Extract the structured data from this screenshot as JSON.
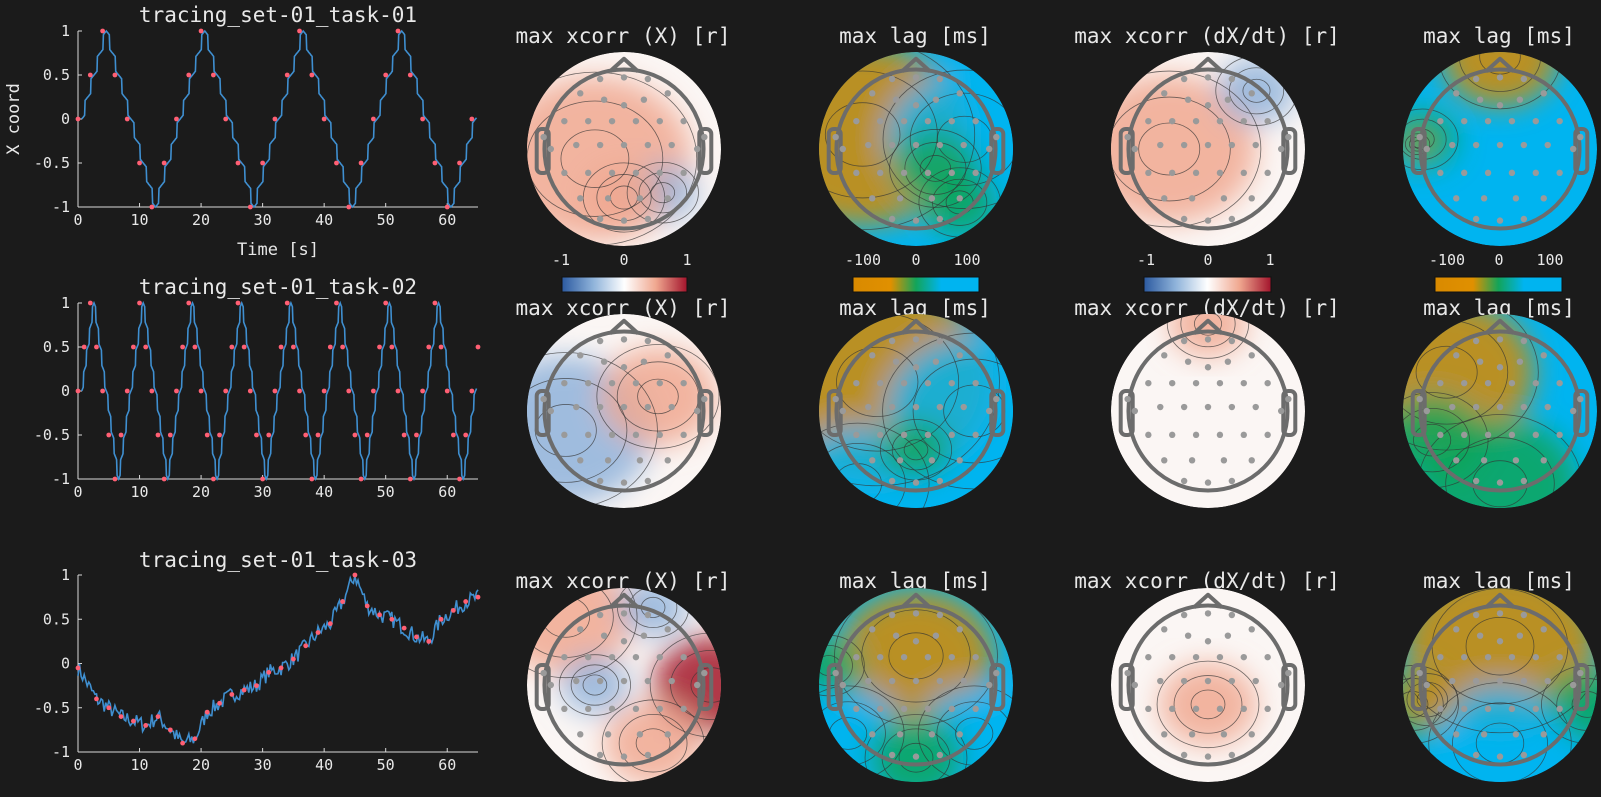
{
  "figure": {
    "background": "#1b1b1b",
    "colors": {
      "trace": "#3f8fd0",
      "targets": "#ff5f73",
      "electrode": "#9a9a9a",
      "head_outline": "#6c6c6c",
      "contour": "#333333",
      "text": "#e8e8e8",
      "diverging_map": [
        "#2c5aa0",
        "#8fb3da",
        "#ffffff",
        "#f0a890",
        "#a3142c"
      ],
      "lag_map": [
        "#d98a00",
        "#e09000",
        "#12a45a",
        "#00b4f0",
        "#00b4f0"
      ]
    }
  },
  "rows": [
    {
      "chart_data": {
        "type": "line",
        "title": "tracing_set-01_task-01",
        "xlabel": "Time [s]",
        "ylabel": "X coord",
        "xlim": [
          0,
          65
        ],
        "ylim": [
          -1,
          1
        ],
        "xticks": [
          0,
          10,
          20,
          30,
          40,
          50,
          60
        ],
        "yticks": [
          -1,
          -0.5,
          0,
          0.5,
          1
        ],
        "series": [
          {
            "kind": "trace",
            "shape": "triangle",
            "period": 16
          },
          {
            "kind": "targets",
            "shape": "triangle",
            "period": 16,
            "marker": "dot"
          }
        ]
      },
      "topomaps": [
        {
          "title": "max xcorr (X) [r]",
          "colormap": "diverging",
          "colorbar": {
            "ticks": [
              "-1",
              "0",
              "1"
            ]
          }
        },
        {
          "title": "max lag [ms]",
          "colormap": "lag",
          "colorbar": {
            "ticks": [
              "-100",
              "0",
              "100"
            ]
          }
        },
        {
          "title": "max xcorr (dX/dt) [r]",
          "colormap": "diverging",
          "colorbar": {
            "ticks": [
              "-1",
              "0",
              "1"
            ]
          }
        },
        {
          "title": "max lag [ms]",
          "colormap": "lag",
          "colorbar": {
            "ticks": [
              "-100",
              "0",
              "100"
            ]
          }
        }
      ]
    },
    {
      "chart_data": {
        "type": "line",
        "title": "tracing_set-01_task-02",
        "xlabel": "",
        "ylabel": "",
        "xlim": [
          0,
          65
        ],
        "ylim": [
          -1,
          1
        ],
        "xticks": [
          0,
          10,
          20,
          30,
          40,
          50,
          60
        ],
        "yticks": [
          -1,
          -0.5,
          0,
          0.5,
          1
        ],
        "series": [
          {
            "kind": "trace",
            "shape": "triangle",
            "period": 8
          },
          {
            "kind": "targets",
            "shape": "triangle",
            "period": 8,
            "marker": "dot"
          }
        ]
      },
      "topomaps": [
        {
          "title": "max xcorr (X) [r]",
          "colormap": "diverging"
        },
        {
          "title": "max lag [ms]",
          "colormap": "lag"
        },
        {
          "title": "max xcorr (dX/dt) [r]",
          "colormap": "diverging"
        },
        {
          "title": "max lag [ms]",
          "colormap": "lag"
        }
      ]
    },
    {
      "chart_data": {
        "type": "line",
        "title": "tracing_set-01_task-03",
        "xlabel": "",
        "ylabel": "",
        "xlim": [
          0,
          65
        ],
        "ylim": [
          -1,
          1
        ],
        "xticks": [
          0,
          10,
          20,
          30,
          40,
          50,
          60
        ],
        "yticks": [
          -1,
          -0.5,
          0,
          0.5,
          1
        ],
        "series": [
          {
            "kind": "trace",
            "shape": "walk",
            "x": [
              0,
              3,
              5,
              7,
              9,
              11,
              13,
              15,
              17,
              19,
              21,
              23,
              25,
              27,
              29,
              31,
              33,
              35,
              37,
              39,
              41,
              43,
              45,
              47,
              49,
              51,
              53,
              55,
              57,
              59,
              61,
              63,
              65
            ],
            "y": [
              -0.05,
              -0.4,
              -0.5,
              -0.6,
              -0.65,
              -0.7,
              -0.6,
              -0.75,
              -0.9,
              -0.85,
              -0.55,
              -0.45,
              -0.35,
              -0.3,
              -0.25,
              -0.1,
              -0.05,
              0.05,
              0.2,
              0.35,
              0.45,
              0.7,
              1.0,
              0.65,
              0.55,
              0.5,
              0.4,
              0.3,
              0.25,
              0.5,
              0.6,
              0.7,
              0.75
            ]
          },
          {
            "kind": "targets",
            "shape": "walk",
            "marker": "dot",
            "x": [
              0,
              3,
              5,
              7,
              9,
              11,
              13,
              15,
              17,
              19,
              21,
              23,
              25,
              27,
              29,
              31,
              33,
              35,
              37,
              39,
              41,
              43,
              45,
              47,
              49,
              51,
              53,
              55,
              57,
              59,
              61,
              63,
              65
            ],
            "y": [
              -0.05,
              -0.4,
              -0.5,
              -0.6,
              -0.65,
              -0.7,
              -0.6,
              -0.75,
              -0.9,
              -0.85,
              -0.55,
              -0.45,
              -0.35,
              -0.3,
              -0.25,
              -0.1,
              -0.05,
              0.05,
              0.2,
              0.35,
              0.45,
              0.7,
              1.0,
              0.65,
              0.55,
              0.5,
              0.4,
              0.3,
              0.25,
              0.5,
              0.6,
              0.7,
              0.75
            ]
          }
        ]
      },
      "topomaps": [
        {
          "title": "max xcorr (X) [r]",
          "colormap": "diverging"
        },
        {
          "title": "max lag [ms]",
          "colormap": "lag"
        },
        {
          "title": "max xcorr (dX/dt) [r]",
          "colormap": "diverging"
        },
        {
          "title": "max lag [ms]",
          "colormap": "lag"
        }
      ]
    }
  ]
}
